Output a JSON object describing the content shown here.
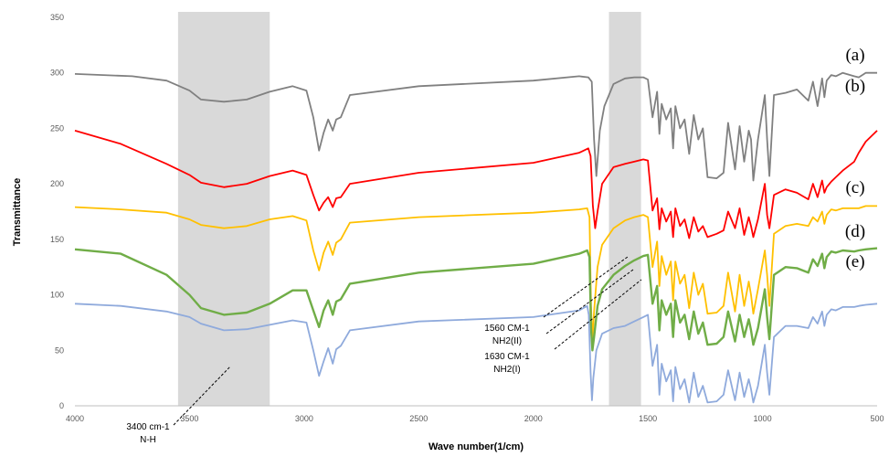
{
  "chart_data": {
    "type": "line",
    "xlabel": "Wave number(1/cm)",
    "ylabel": "Transmittance",
    "xlim": [
      4000,
      500
    ],
    "x_reversed": true,
    "ylim": [
      0,
      350
    ],
    "x_ticks": [
      4000,
      3500,
      3000,
      2500,
      2000,
      1500,
      1000,
      500
    ],
    "y_ticks": [
      0,
      50,
      100,
      150,
      200,
      250,
      300,
      350
    ],
    "grid": false,
    "legend": "labels at right end of each curve",
    "shaded_bands": [
      {
        "x_from": 3550,
        "x_to": 3150,
        "color": "#d9d9d9"
      },
      {
        "x_from": 1670,
        "x_to": 1530,
        "color": "#d9d9d9"
      }
    ],
    "series": [
      {
        "name": "(a)",
        "color": "#808080",
        "x": [
          4000,
          3750,
          3600,
          3500,
          3450,
          3350,
          3250,
          3150,
          3050,
          2990,
          2960,
          2935,
          2915,
          2895,
          2875,
          2860,
          2840,
          2800,
          2500,
          2000,
          1800,
          1760,
          1745,
          1735,
          1725,
          1710,
          1690,
          1650,
          1600,
          1560,
          1520,
          1500,
          1480,
          1460,
          1450,
          1440,
          1420,
          1400,
          1390,
          1380,
          1360,
          1340,
          1320,
          1300,
          1280,
          1260,
          1240,
          1200,
          1170,
          1150,
          1120,
          1100,
          1080,
          1060,
          1050,
          1040,
          1020,
          990,
          980,
          970,
          950,
          900,
          850,
          800,
          780,
          760,
          740,
          730,
          720,
          700,
          680,
          650,
          600,
          580,
          550,
          500
        ],
        "y": [
          299,
          297,
          293,
          284,
          276,
          274,
          276,
          283,
          288,
          284,
          260,
          230,
          246,
          258,
          248,
          258,
          260,
          280,
          288,
          293,
          297,
          296,
          292,
          240,
          207,
          248,
          270,
          290,
          295,
          296,
          296,
          294,
          260,
          283,
          245,
          272,
          258,
          268,
          232,
          270,
          250,
          258,
          227,
          262,
          240,
          250,
          206,
          205,
          210,
          255,
          213,
          252,
          220,
          248,
          240,
          203,
          240,
          280,
          240,
          207,
          280,
          282,
          285,
          275,
          292,
          270,
          295,
          278,
          293,
          298,
          297,
          300,
          297,
          296,
          300,
          300
        ]
      },
      {
        "name": "(b)",
        "color": "#ff0000",
        "x": [
          4000,
          3800,
          3600,
          3500,
          3450,
          3350,
          3250,
          3150,
          3050,
          2990,
          2960,
          2935,
          2915,
          2895,
          2875,
          2860,
          2840,
          2800,
          2500,
          2000,
          1800,
          1760,
          1750,
          1740,
          1730,
          1720,
          1700,
          1650,
          1600,
          1560,
          1520,
          1500,
          1480,
          1460,
          1450,
          1440,
          1420,
          1400,
          1390,
          1380,
          1360,
          1340,
          1320,
          1300,
          1280,
          1260,
          1240,
          1200,
          1170,
          1150,
          1120,
          1100,
          1080,
          1060,
          1050,
          1040,
          1020,
          990,
          980,
          970,
          950,
          900,
          850,
          800,
          780,
          760,
          740,
          730,
          720,
          700,
          680,
          650,
          600,
          580,
          550,
          500
        ],
        "y": [
          248,
          236,
          218,
          208,
          201,
          197,
          200,
          207,
          212,
          208,
          190,
          176,
          183,
          188,
          179,
          187,
          188,
          200,
          210,
          219,
          228,
          232,
          225,
          180,
          160,
          175,
          200,
          215,
          218,
          220,
          222,
          221,
          176,
          187,
          159,
          178,
          166,
          175,
          152,
          178,
          162,
          168,
          151,
          170,
          157,
          162,
          152,
          155,
          158,
          175,
          160,
          178,
          154,
          170,
          162,
          152,
          168,
          200,
          172,
          160,
          190,
          195,
          192,
          186,
          200,
          188,
          203,
          192,
          197,
          202,
          206,
          212,
          220,
          228,
          238,
          248
        ]
      },
      {
        "name": "(c)",
        "color": "#ffc000",
        "x": [
          4000,
          3800,
          3600,
          3500,
          3450,
          3350,
          3250,
          3150,
          3050,
          2990,
          2960,
          2935,
          2915,
          2895,
          2875,
          2860,
          2840,
          2800,
          2500,
          2000,
          1800,
          1765,
          1755,
          1748,
          1742,
          1735,
          1720,
          1700,
          1650,
          1600,
          1560,
          1520,
          1500,
          1480,
          1460,
          1450,
          1440,
          1420,
          1400,
          1390,
          1380,
          1360,
          1340,
          1320,
          1300,
          1280,
          1260,
          1240,
          1200,
          1170,
          1150,
          1120,
          1100,
          1080,
          1060,
          1050,
          1040,
          1020,
          990,
          980,
          970,
          950,
          900,
          850,
          800,
          780,
          760,
          740,
          730,
          720,
          700,
          680,
          650,
          600,
          580,
          550,
          500
        ],
        "y": [
          179,
          177,
          174,
          168,
          163,
          160,
          162,
          168,
          171,
          167,
          140,
          122,
          138,
          148,
          136,
          147,
          150,
          165,
          170,
          174,
          177,
          178,
          170,
          90,
          58,
          85,
          125,
          145,
          160,
          167,
          170,
          172,
          170,
          125,
          148,
          108,
          135,
          118,
          130,
          95,
          130,
          110,
          118,
          88,
          120,
          100,
          110,
          83,
          84,
          90,
          120,
          85,
          118,
          90,
          112,
          100,
          83,
          105,
          140,
          118,
          90,
          155,
          162,
          164,
          162,
          170,
          166,
          175,
          164,
          172,
          177,
          176,
          178,
          178,
          178,
          180,
          180
        ]
      },
      {
        "name": "(d)",
        "color": "#70ad47",
        "x": [
          4000,
          3800,
          3600,
          3500,
          3450,
          3350,
          3250,
          3150,
          3050,
          2990,
          2960,
          2935,
          2915,
          2895,
          2875,
          2860,
          2840,
          2800,
          2500,
          2000,
          1800,
          1765,
          1755,
          1748,
          1742,
          1735,
          1720,
          1700,
          1650,
          1600,
          1560,
          1520,
          1500,
          1480,
          1460,
          1450,
          1440,
          1420,
          1400,
          1390,
          1380,
          1360,
          1340,
          1320,
          1300,
          1280,
          1260,
          1240,
          1200,
          1170,
          1150,
          1120,
          1100,
          1080,
          1060,
          1050,
          1040,
          1020,
          990,
          980,
          970,
          950,
          900,
          850,
          800,
          780,
          760,
          740,
          730,
          720,
          700,
          680,
          650,
          600,
          580,
          550,
          500
        ],
        "y": [
          141,
          137,
          118,
          100,
          88,
          82,
          84,
          92,
          104,
          104,
          86,
          71,
          86,
          95,
          82,
          94,
          96,
          110,
          120,
          128,
          137,
          140,
          134,
          70,
          50,
          62,
          90,
          105,
          118,
          126,
          131,
          135,
          136,
          92,
          108,
          68,
          95,
          82,
          92,
          62,
          95,
          75,
          82,
          60,
          85,
          65,
          75,
          55,
          56,
          62,
          85,
          58,
          82,
          62,
          78,
          68,
          55,
          70,
          105,
          80,
          60,
          118,
          125,
          124,
          120,
          132,
          126,
          137,
          124,
          134,
          139,
          138,
          140,
          139,
          140,
          141,
          142
        ]
      },
      {
        "name": "(e)",
        "color": "#8faadc",
        "x": [
          4000,
          3800,
          3600,
          3500,
          3450,
          3350,
          3250,
          3150,
          3050,
          2990,
          2960,
          2935,
          2915,
          2895,
          2875,
          2860,
          2840,
          2800,
          2500,
          2000,
          1800,
          1765,
          1758,
          1750,
          1744,
          1738,
          1725,
          1700,
          1650,
          1600,
          1560,
          1520,
          1500,
          1480,
          1460,
          1450,
          1440,
          1420,
          1400,
          1390,
          1380,
          1360,
          1340,
          1320,
          1300,
          1280,
          1260,
          1240,
          1200,
          1170,
          1150,
          1120,
          1100,
          1080,
          1060,
          1050,
          1040,
          1020,
          990,
          980,
          970,
          950,
          900,
          850,
          800,
          780,
          760,
          740,
          730,
          720,
          700,
          680,
          650,
          600,
          580,
          550,
          500
        ],
        "y": [
          92,
          90,
          85,
          80,
          74,
          68,
          69,
          73,
          77,
          75,
          50,
          27,
          40,
          52,
          38,
          51,
          54,
          68,
          76,
          80,
          86,
          90,
          82,
          30,
          5,
          25,
          50,
          65,
          70,
          72,
          76,
          80,
          82,
          36,
          55,
          10,
          38,
          22,
          32,
          4,
          35,
          15,
          24,
          3,
          30,
          8,
          18,
          3,
          4,
          10,
          32,
          5,
          30,
          8,
          24,
          15,
          3,
          18,
          55,
          30,
          10,
          62,
          72,
          72,
          70,
          80,
          74,
          85,
          72,
          82,
          87,
          86,
          89,
          89,
          90,
          91,
          92
        ]
      }
    ],
    "annotations": [
      {
        "lines": [
          "3400 cm-1",
          "N-H"
        ]
      },
      {
        "lines": [
          "1560 CM-1",
          "NH2(II)"
        ]
      },
      {
        "lines": [
          "1630 CM-1",
          "NH2(I)"
        ]
      }
    ]
  }
}
